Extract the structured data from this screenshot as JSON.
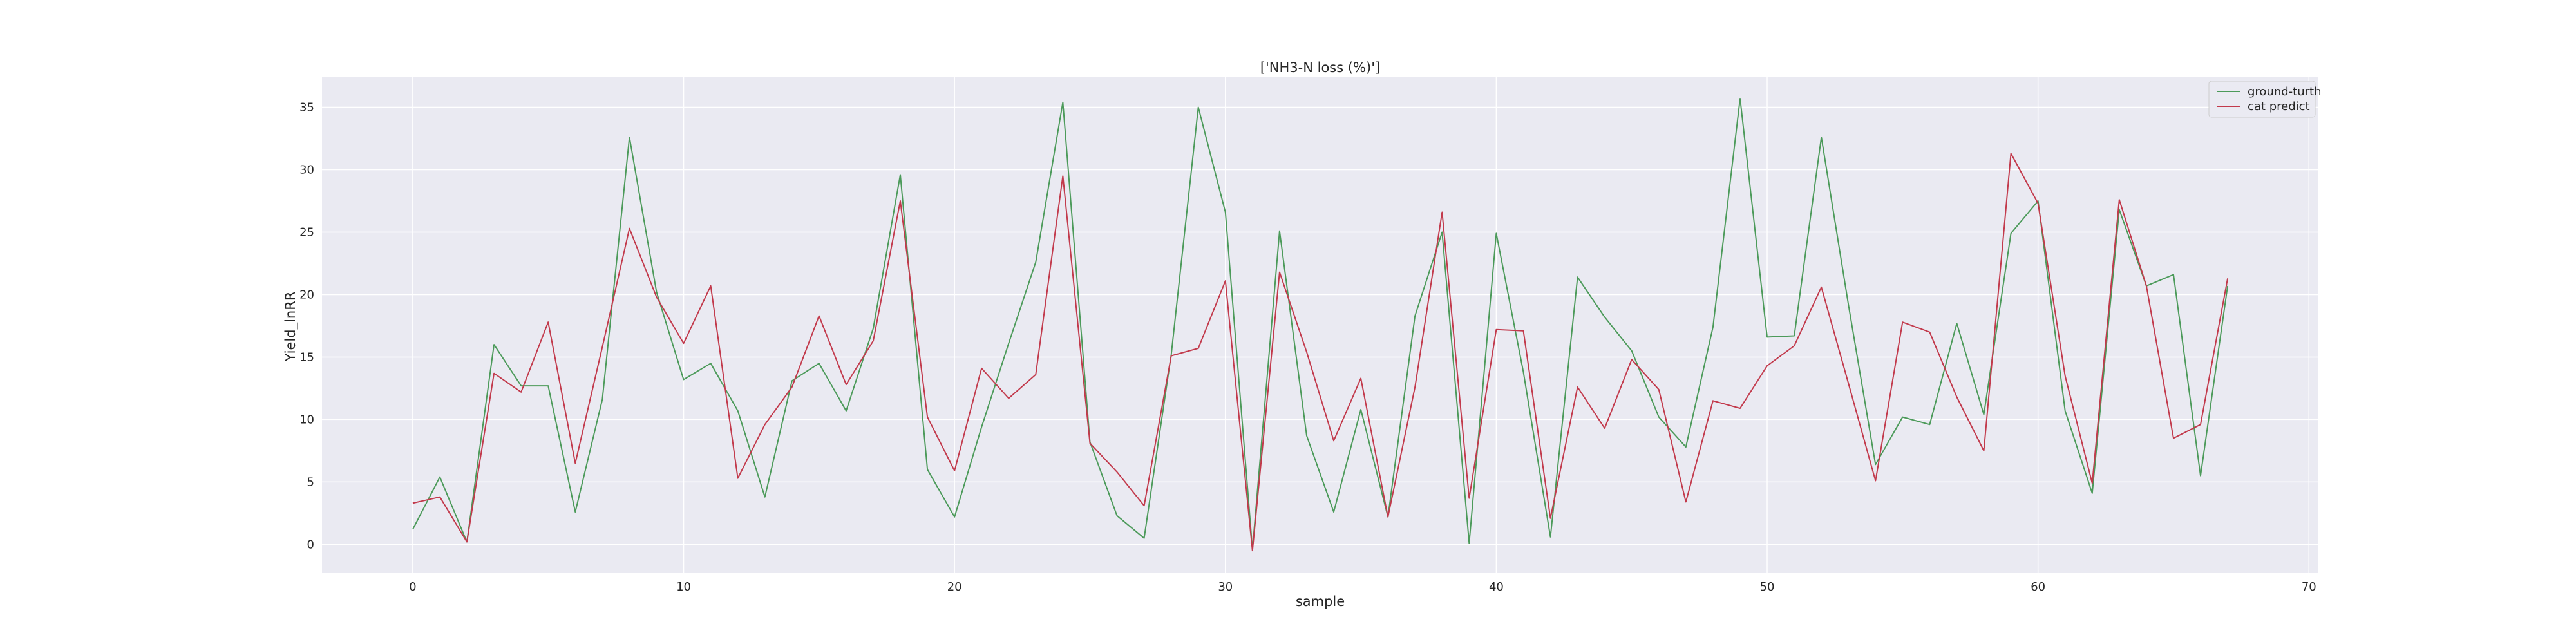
{
  "chart_data": {
    "type": "line",
    "title": "['NH3-N loss (%)']",
    "xlabel": "sample",
    "ylabel": "Yield_lnRR",
    "xlim": [
      -3.35,
      70.35
    ],
    "ylim": [
      -2.3,
      37.4
    ],
    "xticks": [
      0,
      10,
      20,
      30,
      40,
      50,
      60,
      70
    ],
    "yticks": [
      0,
      5,
      10,
      15,
      20,
      25,
      30,
      35
    ],
    "grid": true,
    "legend_position": "top-right",
    "x": [
      0,
      1,
      2,
      3,
      4,
      5,
      6,
      7,
      8,
      9,
      10,
      11,
      12,
      13,
      14,
      15,
      16,
      17,
      18,
      19,
      20,
      21,
      22,
      23,
      24,
      25,
      26,
      27,
      28,
      29,
      30,
      31,
      32,
      33,
      34,
      35,
      36,
      37,
      38,
      39,
      40,
      41,
      42,
      43,
      44,
      45,
      46,
      47,
      48,
      49,
      50,
      51,
      52,
      53,
      54,
      55,
      56,
      57,
      58,
      59,
      60,
      61,
      62,
      63,
      64,
      65,
      66,
      67
    ],
    "series": [
      {
        "name": "ground-turth",
        "color": "#4c9a5a",
        "values": [
          1.2,
          5.4,
          0.2,
          16.0,
          12.7,
          12.7,
          2.6,
          11.6,
          32.6,
          20.2,
          13.2,
          14.5,
          10.7,
          3.8,
          13.1,
          14.5,
          10.7,
          17.3,
          29.6,
          6.0,
          2.2,
          9.4,
          16.1,
          22.6,
          35.4,
          8.2,
          2.3,
          0.5,
          15.2,
          35.0,
          26.6,
          -0.4,
          25.1,
          8.7,
          2.6,
          10.8,
          2.2,
          18.3,
          25.0,
          0.1,
          24.9,
          13.8,
          0.6,
          21.4,
          18.2,
          15.5,
          10.2,
          7.8,
          17.4,
          35.7,
          16.6,
          16.7,
          32.6,
          19.2,
          6.4,
          10.2,
          9.6,
          17.7,
          10.4,
          24.9,
          27.5,
          10.7,
          4.1,
          26.8,
          20.7,
          21.6,
          5.5,
          20.7
        ]
      },
      {
        "name": "cat predict",
        "color": "#c23a4c",
        "values": [
          3.3,
          3.8,
          0.2,
          13.7,
          12.2,
          17.8,
          6.5,
          15.8,
          25.3,
          19.8,
          16.1,
          20.7,
          5.3,
          9.6,
          12.6,
          18.3,
          12.8,
          16.3,
          27.5,
          10.2,
          5.9,
          14.1,
          11.7,
          13.6,
          29.5,
          8.1,
          5.8,
          3.1,
          15.1,
          15.7,
          21.1,
          -0.5,
          21.8,
          15.4,
          8.3,
          13.3,
          2.2,
          12.6,
          26.6,
          3.7,
          17.2,
          17.1,
          2.1,
          12.6,
          9.3,
          14.8,
          12.4,
          3.4,
          11.5,
          10.9,
          14.3,
          15.9,
          20.6,
          12.9,
          5.1,
          17.8,
          17.0,
          11.8,
          7.5,
          31.3,
          27.3,
          13.5,
          4.9,
          27.6,
          20.7,
          8.5,
          9.6,
          21.3
        ]
      }
    ]
  }
}
